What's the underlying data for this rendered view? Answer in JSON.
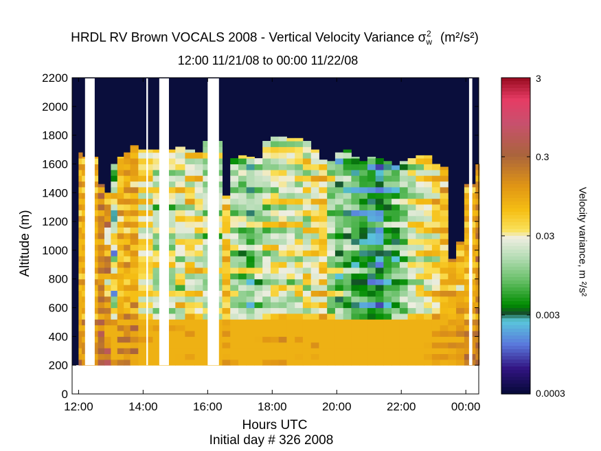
{
  "chart_data": {
    "type": "heatmap",
    "title": "HRDL RV Brown VOCALS 2008 - Vertical Velocity Variance σw² (m²/s²)",
    "title_parts": {
      "prefix": "HRDL RV Brown VOCALS 2008 - Vertical Velocity Variance ",
      "sigma": "σ",
      "sub": "w",
      "sup": "2",
      "units": "(m²/s²)"
    },
    "subtitle": "12:00 11/21/08 to 00:00 11/22/08",
    "xlabel": "Hours UTC",
    "ylabel": "Altitude (m)",
    "caption": "Initial day # 326  2008",
    "colorbar_label": "Velocity variance, m ²/s²",
    "x_ticks": [
      "12:00",
      "14:00",
      "16:00",
      "18:00",
      "20:00",
      "22:00",
      "00:00"
    ],
    "y_ticks": [
      0,
      200,
      400,
      600,
      800,
      1000,
      1200,
      1400,
      1600,
      1800,
      2000,
      2200
    ],
    "xlim_hours": [
      11.8,
      24.4
    ],
    "ylim": [
      0,
      2200
    ],
    "colorbar_ticks": [
      "3",
      "0.3",
      "0.03",
      "0.003",
      "0.0003"
    ],
    "colorbar_range": [
      0.0003,
      3
    ],
    "colorbar_scale": "log",
    "data_gaps_hours": [
      [
        12.2,
        12.5
      ],
      [
        14.1,
        14.15
      ],
      [
        14.5,
        14.8
      ],
      [
        16.0,
        16.35
      ],
      [
        24.1,
        24.2
      ]
    ],
    "data_bottom_m": 200,
    "background": "#0a0e3c",
    "columns": [
      {
        "t": 12.0,
        "top": 1680,
        "logv": [
          -1.0,
          -1.1,
          -1.2,
          -1.2,
          -1.0,
          -1.1,
          -1.3,
          -1.2,
          -1.1,
          -1.2,
          -1.0,
          -1.1,
          -1.2,
          -1.1,
          -1.0,
          -1.1,
          -1.2,
          -1.0,
          -1.1,
          -1.0,
          -1.2,
          -1.1,
          -1.0,
          -1.1,
          -1.1,
          -1.0,
          -1.2,
          -1.1,
          -1.0,
          -1.1,
          -1.0,
          -1.1,
          -1.0,
          -1.1,
          -1.0,
          -1.1,
          -1.0,
          -1.1,
          -1.1,
          -1.0,
          -1.1,
          -1.0,
          -1.1,
          -1.0,
          -1.1,
          -1.0,
          -1.1,
          -1.0,
          -1.1,
          -1.0,
          -1.1,
          -1.0,
          -1.1,
          -1.0,
          -1.1,
          -1.0,
          -1.1,
          -1.0,
          -1.1,
          -1.0,
          -1.1,
          -1.0,
          -1.1,
          -1.0,
          -1.1,
          -1.0,
          -1.1,
          -1.0,
          -1.1,
          -1.0,
          -1.1,
          -1.0,
          -1.1,
          -1.0,
          -1.1,
          -1.0
        ]
      },
      {
        "t": 12.1,
        "top": 1650,
        "logv": [
          -1.1
        ]
      },
      {
        "t": 12.6,
        "top": 1460,
        "logv": [
          -0.8
        ]
      },
      {
        "t": 12.8,
        "top": 1400,
        "logv": [
          -0.6,
          -0.7,
          -0.8,
          -1.0,
          -1.2,
          -1.4,
          -1.6,
          -1.3
        ]
      },
      {
        "t": 13.0,
        "top": 1600,
        "logv": [
          -1.2,
          -1.3,
          -1.5,
          -1.8,
          -2.3,
          -2.6,
          -1.6
        ]
      },
      {
        "t": 13.2,
        "top": 1650,
        "logv": [
          -1.1,
          -1.2,
          -1.0,
          -1.3
        ]
      },
      {
        "t": 13.4,
        "top": 1680,
        "logv": [
          -0.9,
          -1.0,
          -1.1,
          -1.2
        ]
      },
      {
        "t": 13.6,
        "top": 1730,
        "logv": [
          -1.0,
          -1.1,
          -0.9,
          -1.2
        ]
      },
      {
        "t": 13.85,
        "top": 1700,
        "logv": [
          -1.3,
          -1.5,
          -1.4,
          -1.6
        ]
      },
      {
        "t": 14.3,
        "top": 1700,
        "logv": [
          -1.4,
          -1.6,
          -1.8,
          -2.0,
          -1.7,
          -1.5
        ]
      },
      {
        "t": 15.0,
        "top": 1720,
        "logv": [
          -1.3,
          -1.5,
          -1.7,
          -1.9,
          -1.6
        ]
      },
      {
        "t": 15.3,
        "top": 1700,
        "logv": [
          -1.2,
          -1.4,
          -1.6,
          -1.8
        ]
      },
      {
        "t": 15.6,
        "top": 1680,
        "logv": [
          -1.3,
          -1.5,
          -1.7,
          -1.6
        ]
      },
      {
        "t": 15.85,
        "top": 1760,
        "logv": [
          -1.6,
          -1.8,
          -2.0,
          -1.7
        ]
      },
      {
        "t": 16.45,
        "top": 1380,
        "logv": [
          -1.2,
          -1.4,
          -1.3
        ]
      },
      {
        "t": 16.7,
        "top": 1640,
        "logv": [
          -1.5,
          -1.7,
          -1.9,
          -2.1
        ]
      },
      {
        "t": 16.95,
        "top": 1660,
        "logv": [
          -1.6,
          -1.8,
          -2.0,
          -2.2
        ]
      },
      {
        "t": 17.2,
        "top": 1650,
        "logv": [
          -1.7,
          -2.0,
          -2.4,
          -2.1
        ]
      },
      {
        "t": 17.45,
        "top": 1640,
        "logv": [
          -1.6,
          -1.9,
          -2.1,
          -1.8
        ]
      },
      {
        "t": 17.7,
        "top": 1760,
        "logv": [
          -1.4,
          -1.7,
          -1.9,
          -2.0
        ]
      },
      {
        "t": 17.95,
        "top": 1790,
        "logv": [
          -1.3,
          -1.6,
          -1.8,
          -1.9
        ]
      },
      {
        "t": 18.2,
        "top": 1790,
        "logv": [
          -1.3,
          -1.5,
          -1.7,
          -1.8
        ]
      },
      {
        "t": 18.45,
        "top": 1780,
        "logv": [
          -1.5,
          -1.7,
          -1.9,
          -1.6
        ]
      },
      {
        "t": 18.7,
        "top": 1780,
        "logv": [
          -1.4,
          -1.6,
          -1.8,
          -1.7
        ]
      },
      {
        "t": 18.95,
        "top": 1760,
        "logv": [
          -1.6,
          -1.8,
          -1.5,
          -1.4
        ]
      },
      {
        "t": 19.2,
        "top": 1700,
        "logv": [
          -1.3,
          -1.5,
          -1.7,
          -1.4
        ]
      },
      {
        "t": 19.45,
        "top": 1630,
        "logv": [
          -1.2,
          -1.4,
          -1.3,
          -1.5
        ]
      },
      {
        "t": 19.7,
        "top": 1620,
        "logv": [
          -1.6,
          -1.9,
          -2.1,
          -1.8
        ]
      },
      {
        "t": 19.95,
        "top": 1680,
        "logv": [
          -1.7,
          -2.0,
          -2.2,
          -2.4
        ]
      },
      {
        "t": 20.2,
        "top": 1700,
        "logv": [
          -1.8,
          -2.1,
          -2.3,
          -2.0
        ]
      },
      {
        "t": 20.45,
        "top": 1650,
        "logv": [
          -2.0,
          -2.3,
          -2.5,
          -2.2
        ]
      },
      {
        "t": 20.7,
        "top": 1620,
        "logv": [
          -2.1,
          -2.4,
          -2.6,
          -2.3
        ]
      },
      {
        "t": 20.95,
        "top": 1650,
        "logv": [
          -2.2,
          -2.5,
          -2.7,
          -2.4
        ]
      },
      {
        "t": 21.2,
        "top": 1640,
        "logv": [
          -2.3,
          -2.6,
          -2.8,
          -2.5
        ]
      },
      {
        "t": 21.45,
        "top": 1620,
        "logv": [
          -2.0,
          -2.3,
          -2.5,
          -2.2
        ]
      },
      {
        "t": 21.7,
        "top": 1590,
        "logv": [
          -1.9,
          -2.2,
          -2.4,
          -2.1
        ]
      },
      {
        "t": 21.95,
        "top": 1620,
        "logv": [
          -1.7,
          -2.0,
          -2.2,
          -1.9
        ]
      },
      {
        "t": 22.2,
        "top": 1640,
        "logv": [
          -1.5,
          -1.7,
          -1.9,
          -1.6
        ]
      },
      {
        "t": 22.45,
        "top": 1660,
        "logv": [
          -1.4,
          -1.6,
          -1.8,
          -1.5
        ]
      },
      {
        "t": 22.7,
        "top": 1660,
        "logv": [
          -1.3,
          -1.5,
          -1.7,
          -1.4
        ]
      },
      {
        "t": 22.95,
        "top": 1600,
        "logv": [
          -1.2,
          -1.4,
          -1.6,
          -1.3
        ]
      },
      {
        "t": 23.2,
        "top": 1580,
        "logv": [
          -1.1,
          -1.3,
          -1.2
        ]
      },
      {
        "t": 23.45,
        "top": 940,
        "logv": [
          -1.0,
          -1.2,
          -1.1
        ]
      },
      {
        "t": 23.7,
        "top": 1060,
        "logv": [
          -1.1,
          -1.3,
          -1.0
        ]
      },
      {
        "t": 23.95,
        "top": 1460,
        "logv": [
          -1.2,
          -1.0,
          -1.1
        ]
      },
      {
        "t": 24.3,
        "top": 1600,
        "logv": [
          -0.8,
          -0.9,
          -1.0
        ]
      }
    ]
  }
}
